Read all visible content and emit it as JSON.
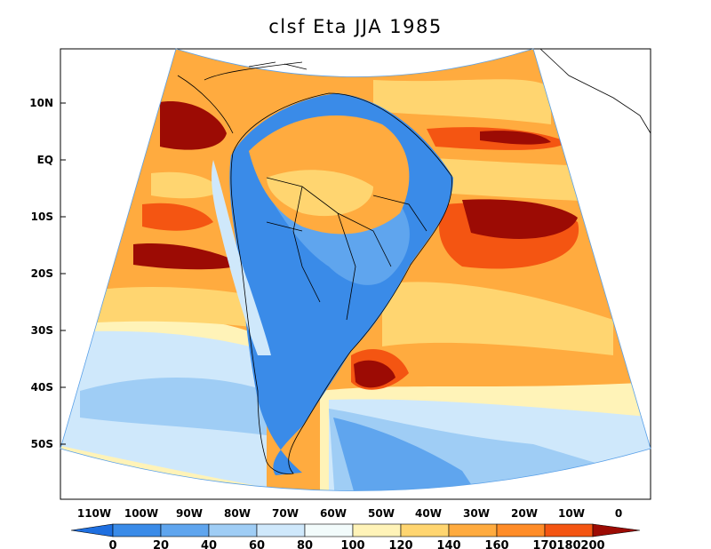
{
  "title": "clsf Eta JJA 1985",
  "map": {
    "lat_ticks": [
      "10N",
      "EQ",
      "10S",
      "20S",
      "30S",
      "40S",
      "50S"
    ],
    "lon_ticks": [
      "110W",
      "100W",
      "90W",
      "80W",
      "70W",
      "60W",
      "50W",
      "40W",
      "30W",
      "20W",
      "10W",
      "0"
    ]
  },
  "colorbar": {
    "labels": [
      "0",
      "20",
      "40",
      "60",
      "80",
      "100",
      "120",
      "140",
      "160",
      "170",
      "180",
      "200"
    ],
    "colors": [
      "#1e6fe0",
      "#3a8be8",
      "#5fa5ee",
      "#9fcdf5",
      "#cfe8fb",
      "#f2fbfb",
      "#fff3b8",
      "#ffd570",
      "#ffab3f",
      "#ff8c28",
      "#f45512",
      "#c71a0c",
      "#9c0b04"
    ]
  },
  "field_colors": {
    "ocean_warm": "#ffab3f",
    "ocean_hot": "#f45512",
    "ocean_max": "#9c0b04",
    "ocean_mild": "#ffd570",
    "ocean_pale": "#fff3b8",
    "ocean_cool": "#cfe8fb",
    "ocean_cold": "#9fcdf5",
    "land_dry": "#3a8be8",
    "land_mid": "#5fa5ee",
    "amazon": "#ffab3f"
  }
}
